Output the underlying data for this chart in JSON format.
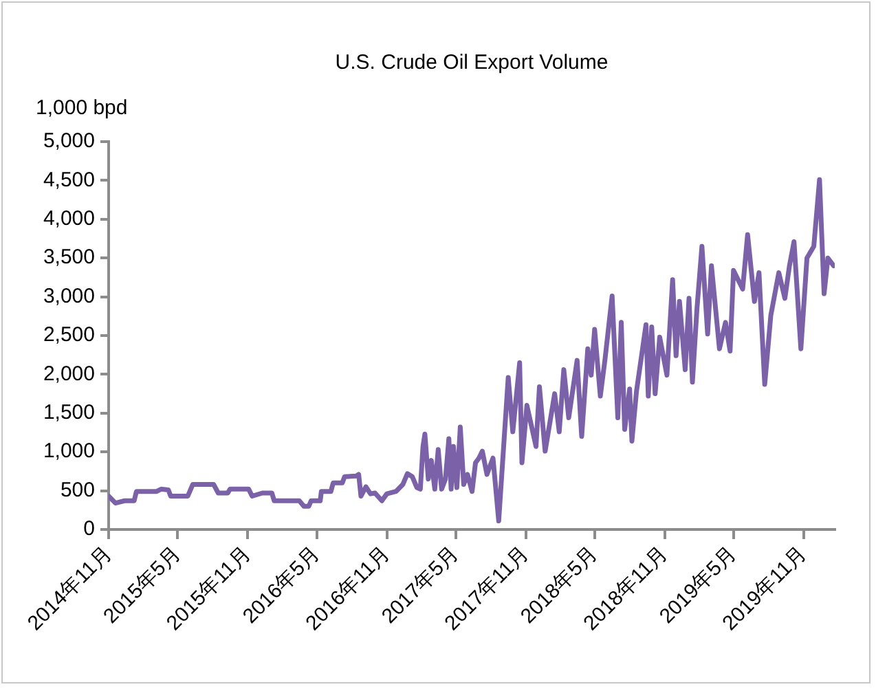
{
  "chart_data": {
    "type": "line",
    "title": "U.S. Crude Oil Export Volume",
    "ylabel": "1,000 bpd",
    "xlim": [
      "2014-11-01",
      "2020-01-22"
    ],
    "xticks": [
      {
        "value": "2014-11",
        "label": "2014年11月"
      },
      {
        "value": "2015-05",
        "label": "2015年5月"
      },
      {
        "value": "2015-11",
        "label": "2015年11月"
      },
      {
        "value": "2016-05",
        "label": "2016年5月"
      },
      {
        "value": "2016-11",
        "label": "2016年11月"
      },
      {
        "value": "2017-05",
        "label": "2017年5月"
      },
      {
        "value": "2017-11",
        "label": "2017年11月"
      },
      {
        "value": "2018-05",
        "label": "2018年5月"
      },
      {
        "value": "2018-11",
        "label": "2018年11月"
      },
      {
        "value": "2019-05",
        "label": "2019年5月"
      },
      {
        "value": "2019-11",
        "label": "2019年11月"
      }
    ],
    "ylim": [
      0,
      5000
    ],
    "yticks": [
      0,
      500,
      {
        "value": 1000,
        "label": "1,000"
      },
      {
        "value": 1500,
        "label": "1,500"
      },
      {
        "value": 2000,
        "label": "2,000"
      },
      {
        "value": 2500,
        "label": "2,500"
      },
      {
        "value": 3000,
        "label": "3,000"
      },
      {
        "value": 3500,
        "label": "3,500"
      },
      {
        "value": 4000,
        "label": "4,000"
      },
      {
        "value": 4500,
        "label": "4,500"
      },
      {
        "value": 5000,
        "label": "5,000"
      }
    ],
    "grid": false,
    "legend": false,
    "marker": "none",
    "line_style": "solid",
    "series": [
      {
        "color": "#7b62a8",
        "x": [
          "2014-11-01",
          "2014-11-19",
          "2014-12-13",
          "2015-01-07",
          "2015-01-13",
          "2015-03-07",
          "2015-03-19",
          "2015-04-07",
          "2015-04-13",
          "2015-05-28",
          "2015-06-10",
          "2015-08-04",
          "2015-08-16",
          "2015-09-10",
          "2015-09-16",
          "2015-11-04",
          "2015-11-13",
          "2015-12-10",
          "2016-01-04",
          "2016-01-10",
          "2016-03-16",
          "2016-03-28",
          "2016-04-10",
          "2016-04-16",
          "2016-05-10",
          "2016-05-13",
          "2016-06-07",
          "2016-06-13",
          "2016-07-07",
          "2016-07-13",
          "2016-08-13",
          "2016-08-19",
          "2016-08-25",
          "2016-09-07",
          "2016-09-19",
          "2016-10-01",
          "2016-10-19",
          "2016-11-01",
          "2016-11-25",
          "2016-12-13",
          "2016-12-25",
          "2017-01-07",
          "2017-01-19",
          "2017-01-28",
          "2017-02-04",
          "2017-02-09",
          "2017-02-18",
          "2017-02-26",
          "2017-03-07",
          "2017-03-16",
          "2017-03-25",
          "2017-04-04",
          "2017-04-13",
          "2017-04-19",
          "2017-04-25",
          "2017-05-04",
          "2017-05-13",
          "2017-05-22",
          "2017-06-01",
          "2017-06-13",
          "2017-06-22",
          "2017-07-01",
          "2017-07-10",
          "2017-07-22",
          "2017-08-07",
          "2017-08-22",
          "2017-09-16",
          "2017-09-28",
          "2017-10-16",
          "2017-10-22",
          "2017-11-04",
          "2017-11-28",
          "2017-12-07",
          "2017-12-22",
          "2018-01-16",
          "2018-01-28",
          "2018-02-09",
          "2018-02-22",
          "2018-03-16",
          "2018-03-28",
          "2018-04-13",
          "2018-04-22",
          "2018-05-01",
          "2018-05-16",
          "2018-05-28",
          "2018-06-16",
          "2018-07-01",
          "2018-07-10",
          "2018-07-19",
          "2018-08-01",
          "2018-08-07",
          "2018-08-19",
          "2018-09-13",
          "2018-09-19",
          "2018-09-28",
          "2018-10-07",
          "2018-10-19",
          "2018-11-07",
          "2018-11-22",
          "2018-12-01",
          "2018-12-10",
          "2018-12-25",
          "2019-01-04",
          "2019-01-13",
          "2019-01-25",
          "2019-02-07",
          "2019-02-22",
          "2019-03-04",
          "2019-03-25",
          "2019-04-10",
          "2019-04-22",
          "2019-05-01",
          "2019-05-25",
          "2019-06-07",
          "2019-06-25",
          "2019-07-07",
          "2019-07-22",
          "2019-08-07",
          "2019-08-28",
          "2019-09-13",
          "2019-09-25",
          "2019-10-07",
          "2019-10-25",
          "2019-11-10",
          "2019-11-28",
          "2019-12-13",
          "2019-12-25",
          "2020-01-04",
          "2020-01-19"
        ],
        "values": [
          430,
          340,
          370,
          370,
          490,
          490,
          520,
          510,
          430,
          430,
          580,
          580,
          470,
          470,
          520,
          520,
          430,
          470,
          470,
          370,
          370,
          300,
          300,
          370,
          370,
          490,
          490,
          600,
          600,
          680,
          690,
          710,
          430,
          550,
          460,
          470,
          370,
          460,
          490,
          580,
          720,
          680,
          540,
          520,
          1070,
          1230,
          650,
          890,
          520,
          1030,
          520,
          650,
          1170,
          520,
          1070,
          540,
          1320,
          580,
          710,
          490,
          860,
          920,
          1010,
          710,
          920,
          110,
          1960,
          1260,
          2150,
          860,
          1600,
          1070,
          1840,
          1010,
          1750,
          1260,
          2060,
          1440,
          2180,
          1200,
          2330,
          1990,
          2580,
          1720,
          2180,
          3010,
          1440,
          2670,
          1290,
          1810,
          1140,
          1780,
          2640,
          1720,
          2610,
          1750,
          2480,
          1990,
          3220,
          2240,
          2940,
          2060,
          2980,
          1900,
          2850,
          3650,
          2520,
          3400,
          2330,
          2670,
          2300,
          3340,
          3100,
          3800,
          2940,
          3310,
          1870,
          2760,
          3310,
          2980,
          3400,
          3710,
          2330,
          3500,
          3650,
          4510,
          3040,
          3500,
          3400
        ]
      }
    ]
  }
}
